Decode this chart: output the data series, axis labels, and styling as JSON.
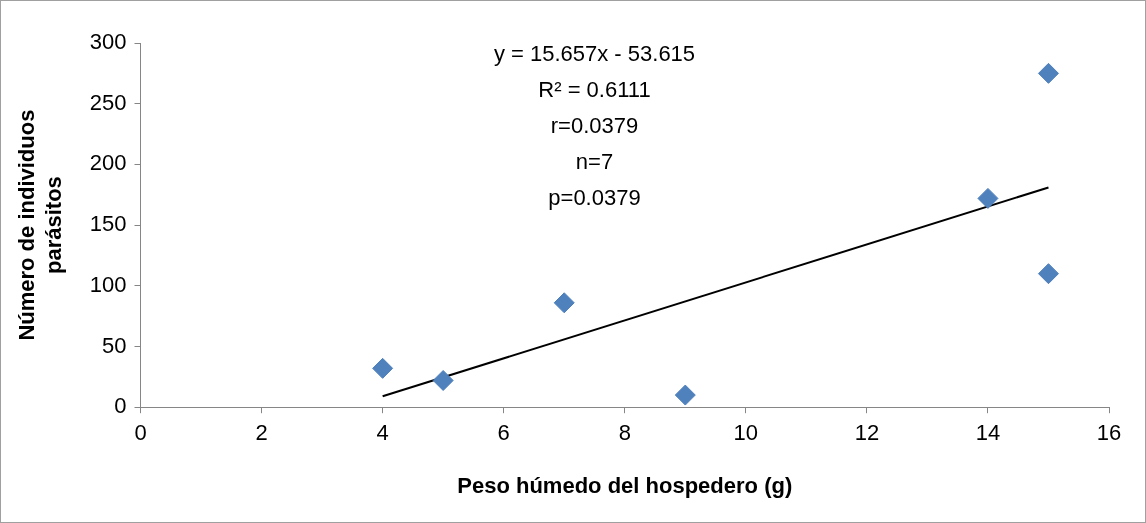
{
  "chart_data": {
    "type": "scatter",
    "xlabel": "Peso húmedo del hospedero (g)",
    "ylabel": "Número de individuos parásitos",
    "xlim": [
      0,
      16
    ],
    "xticks": [
      0,
      2,
      4,
      6,
      8,
      10,
      12,
      14,
      16
    ],
    "ylim": [
      0,
      300
    ],
    "yticks": [
      0,
      50,
      100,
      150,
      200,
      250,
      300
    ],
    "series": [
      {
        "marker": "diamond",
        "color": "#4f81bd",
        "x": [
          4,
          5,
          7,
          9,
          14,
          15,
          15
        ],
        "values": [
          32,
          22,
          86,
          10,
          172,
          275,
          110
        ]
      },
      {
        "type": "line",
        "marker": "none",
        "color": "#000000",
        "x": [
          4,
          15
        ],
        "values": [
          9,
          181
        ]
      }
    ],
    "annotations": [
      "y = 15.657x - 53.615",
      "R² = 0.6111",
      "r=0.0379",
      "n=7",
      "p=0.0379"
    ]
  }
}
